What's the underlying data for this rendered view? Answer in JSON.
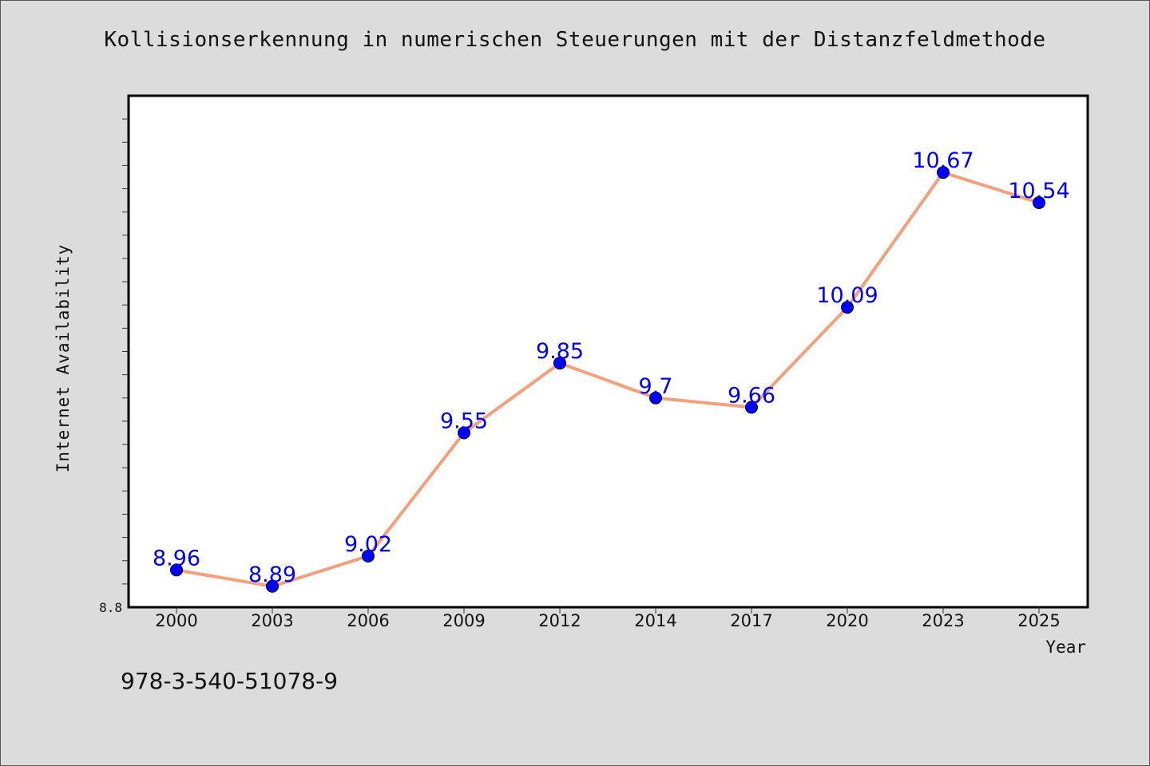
{
  "title": "Kollisionserkennung in numerischen Steuerungen mit der Distanzfeldmethode",
  "footer_code": "978-3-540-51078-9",
  "chart_data": {
    "type": "line",
    "title": "Kollisionserkennung in numerischen Steuerungen mit der Distanzfeldmethode",
    "xlabel": "Year",
    "ylabel": "Internet Availability",
    "categories": [
      "2000",
      "2003",
      "2006",
      "2009",
      "2012",
      "2014",
      "2017",
      "2020",
      "2023",
      "2025"
    ],
    "values": [
      8.96,
      8.89,
      9.02,
      9.55,
      9.85,
      9.7,
      9.66,
      10.09,
      10.67,
      10.54
    ],
    "data_labels": [
      "8.96",
      "8.89",
      "9.02",
      "9.55",
      "9.85",
      "9.7",
      "9.66",
      "10.09",
      "10.67",
      "10.54"
    ],
    "y_tick_labels": [
      "8.8"
    ],
    "ylim": [
      8.8,
      11.0
    ],
    "grid": false,
    "legend": "none",
    "colors": {
      "line": "#f4a07c",
      "marker": "#0000ff",
      "label": "#0000ff",
      "plot_background": "#ffffff",
      "figure_background": "#dcdcdc"
    }
  }
}
